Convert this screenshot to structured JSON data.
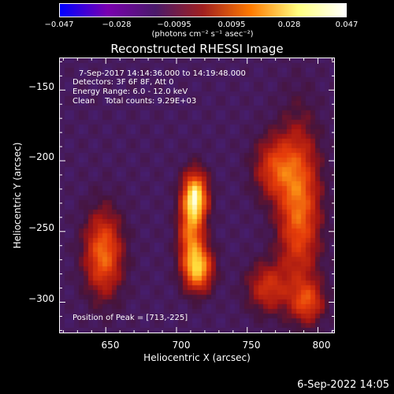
{
  "colorbar": {
    "ticks": [
      "−0.047",
      "−0.028",
      "−0.0095",
      "0.0095",
      "0.028",
      "0.047"
    ],
    "unit": "(photons cm⁻² s⁻¹ asec⁻²)",
    "colors": [
      "#0000ff",
      "#7a00b0",
      "#4a1a6a",
      "#a02020",
      "#ff7a00",
      "#ffff80",
      "#ffffff"
    ]
  },
  "title": "Reconstructed RHESSI Image",
  "annotations": {
    "time": "7-Sep-2017 14:14:36.000 to 14:19:48.000",
    "detectors": "Detectors: 3F 6F 8F, Att 0",
    "energy": "Energy Range: 6.0 - 12.0 keV",
    "clean": "Clean    Total counts: 9.29E+03",
    "peak": "Position of Peak = [713,-225]"
  },
  "footer": "6-Sep-2022 14:05",
  "chart_data": {
    "type": "heatmap",
    "title": "Reconstructed RHESSI Image",
    "xlabel": "Heliocentric X (arcsec)",
    "ylabel": "Heliocentric Y (arcsec)",
    "xlim": [
      617,
      812
    ],
    "ylim": [
      -322,
      -127
    ],
    "x_ticks": [
      650,
      700,
      750,
      800
    ],
    "y_ticks": [
      -150,
      -200,
      -250,
      -300
    ],
    "x_tick_labels": [
      "650",
      "700",
      "750",
      "800"
    ],
    "y_tick_labels": [
      "−150",
      "−200",
      "−250",
      "−300"
    ],
    "colorbar_range": [
      -0.047,
      0.047
    ],
    "peak": [
      713,
      -225
    ],
    "sources": [
      {
        "x": 713,
        "y": -226,
        "sx": 6,
        "sy": 12,
        "amp": 1.0
      },
      {
        "x": 715,
        "y": -276,
        "sx": 7,
        "sy": 11,
        "amp": 0.85
      },
      {
        "x": 710,
        "y": -252,
        "sx": 6,
        "sy": 14,
        "amp": 0.55
      },
      {
        "x": 648,
        "y": -266,
        "sx": 9,
        "sy": 20,
        "amp": 0.62
      },
      {
        "x": 787,
        "y": -232,
        "sx": 10,
        "sy": 38,
        "amp": 0.62
      },
      {
        "x": 770,
        "y": -205,
        "sx": 10,
        "sy": 15,
        "amp": 0.45
      },
      {
        "x": 765,
        "y": -290,
        "sx": 10,
        "sy": 12,
        "amp": 0.4
      },
      {
        "x": 793,
        "y": -300,
        "sx": 8,
        "sy": 10,
        "amp": 0.45
      }
    ]
  }
}
